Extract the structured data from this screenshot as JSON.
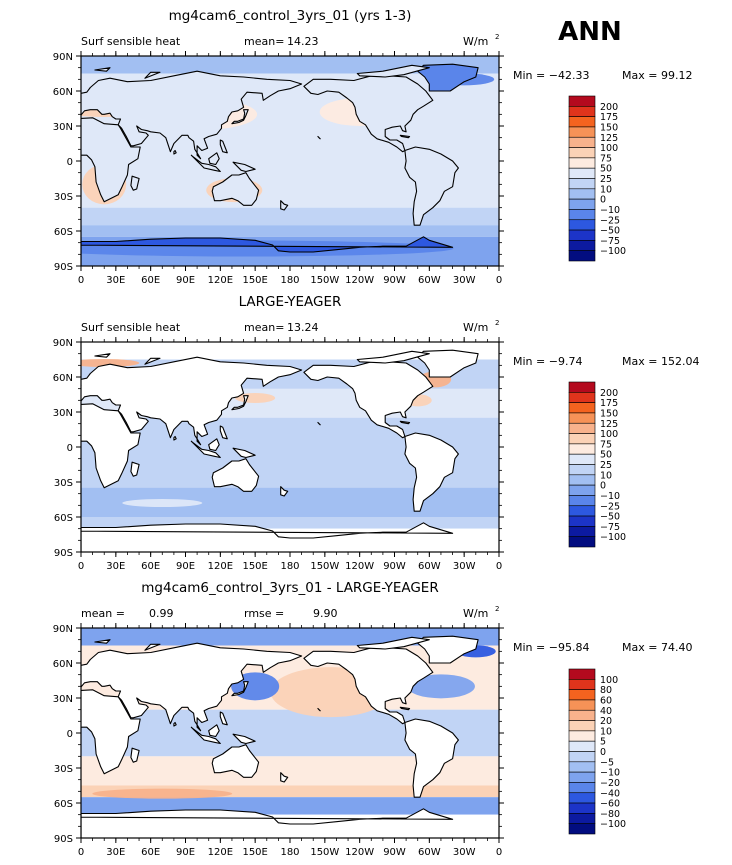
{
  "season": "ANN",
  "colors": {
    "cb_main": [
      "#b40a1e",
      "#e0341c",
      "#f4631f",
      "#f69257",
      "#f8b28c",
      "#fbd2b6",
      "#fdebe0",
      "#dfe8f8",
      "#c1d4f5",
      "#a2bff2",
      "#7ea3ee",
      "#5a85ea",
      "#2d58e0",
      "#1c34c8",
      "#0c1aa0",
      "#020d80"
    ],
    "land_fill": "#ffffff",
    "coast": "#000000"
  },
  "panels": [
    {
      "title": "mg4cam6_control_3yrs_01 (yrs 1-3)",
      "left_label": "Surf sensible heat",
      "stat1": "mean=",
      "stat1_value": "14.23",
      "stat2": "",
      "stat2_value": "",
      "units": "W/m",
      "units_sup": "2",
      "min_label": "Min = −42.33",
      "max_label": "Max = 99.12",
      "map_style": "control",
      "colorbar": [
        "200",
        "175",
        "150",
        "125",
        "100",
        "75",
        "50",
        "25",
        "10",
        "0",
        "−10",
        "−25",
        "−50",
        "−75",
        "−100"
      ]
    },
    {
      "title": "LARGE-YEAGER",
      "left_label": "Surf sensible heat",
      "stat1": "mean=",
      "stat1_value": "13.24",
      "stat2": "",
      "stat2_value": "",
      "units": "W/m",
      "units_sup": "2",
      "min_label": "Min = −9.74",
      "max_label": "Max = 152.04",
      "map_style": "obs",
      "colorbar": [
        "200",
        "175",
        "150",
        "125",
        "100",
        "75",
        "50",
        "25",
        "10",
        "0",
        "−10",
        "−25",
        "−50",
        "−75",
        "−100"
      ]
    },
    {
      "title": "mg4cam6_control_3yrs_01 - LARGE-YEAGER",
      "left_label": "",
      "stat1": "mean =",
      "stat1_value": "0.99",
      "stat2": "rmse =",
      "stat2_value": "9.90",
      "units": "W/m",
      "units_sup": "2",
      "min_label": "Min = −95.84",
      "max_label": "Max = 74.40",
      "map_style": "diff",
      "colorbar": [
        "100",
        "80",
        "60",
        "40",
        "20",
        "10",
        "5",
        "0",
        "−5",
        "−10",
        "−20",
        "−40",
        "−60",
        "−80",
        "−100"
      ]
    }
  ],
  "axes": {
    "lat_ticks": [
      "90N",
      "60N",
      "30N",
      "0",
      "30S",
      "60S",
      "90S"
    ],
    "lon_ticks": [
      "0",
      "30E",
      "60E",
      "90E",
      "120E",
      "150E",
      "180",
      "150W",
      "120W",
      "90W",
      "60W",
      "30W",
      "0"
    ]
  },
  "chart_data": [
    {
      "type": "heatmap",
      "title": "mg4cam6_control_3yrs_01 (yrs 1-3)",
      "variable": "Surf sensible heat",
      "units": "W/m^2",
      "mean": 14.23,
      "min": -42.33,
      "max": 99.12,
      "xlim": [
        "0",
        "0"
      ],
      "ylim": [
        "90S",
        "90N"
      ],
      "contour_levels": [
        -100,
        -75,
        -50,
        -25,
        -10,
        0,
        10,
        25,
        50,
        75,
        100,
        125,
        150,
        175,
        200
      ]
    },
    {
      "type": "heatmap",
      "title": "LARGE-YEAGER",
      "variable": "Surf sensible heat",
      "units": "W/m^2",
      "mean": 13.24,
      "min": -9.74,
      "max": 152.04,
      "xlim": [
        "0",
        "0"
      ],
      "ylim": [
        "90S",
        "90N"
      ],
      "contour_levels": [
        -100,
        -75,
        -50,
        -25,
        -10,
        0,
        10,
        25,
        50,
        75,
        100,
        125,
        150,
        175,
        200
      ]
    },
    {
      "type": "heatmap",
      "title": "mg4cam6_control_3yrs_01 - LARGE-YEAGER",
      "units": "W/m^2",
      "mean": 0.99,
      "rmse": 9.9,
      "min": -95.84,
      "max": 74.4,
      "xlim": [
        "0",
        "0"
      ],
      "ylim": [
        "90S",
        "90N"
      ],
      "contour_levels": [
        -100,
        -80,
        -60,
        -40,
        -20,
        -10,
        -5,
        0,
        5,
        10,
        20,
        40,
        60,
        80,
        100
      ]
    }
  ]
}
